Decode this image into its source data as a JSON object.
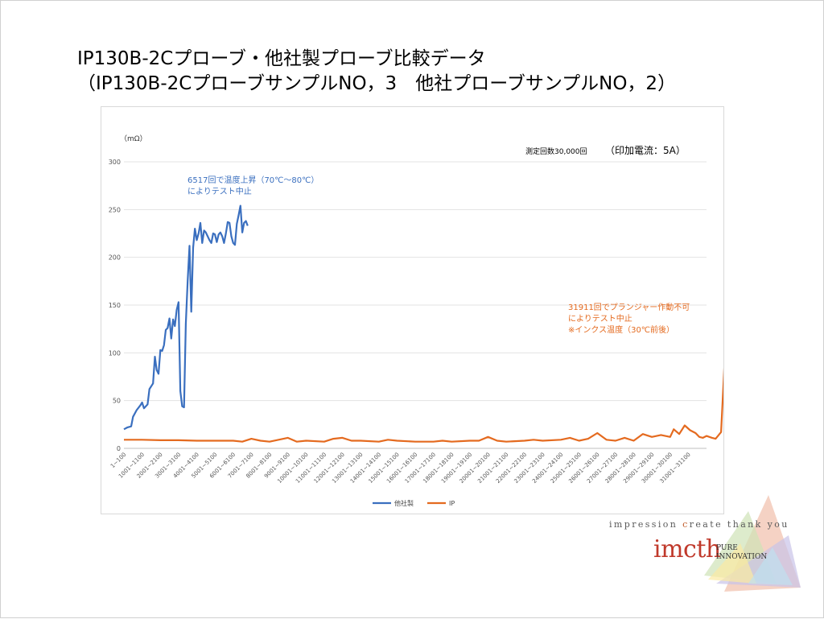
{
  "slide": {
    "title_line1": "IP130B-2Cプローブ・他社製プローブ比較データ",
    "title_line2": "（IP130B-2CプローブサンプルNO，3　他社プローブサンプルNO，2）"
  },
  "chart_data": {
    "type": "line",
    "ylabel": "（mΩ）",
    "ylim": [
      0,
      300
    ],
    "yticks": [
      0,
      50,
      100,
      150,
      200,
      250,
      300
    ],
    "grid": "horizontal",
    "legend_position": "bottom",
    "header_note_count": "測定回数30,000回",
    "header_note_current": "（印加電流：5A）",
    "annotations": [
      {
        "id": "competitor-stop",
        "color": "#3a6fbf",
        "lines": [
          "6517回で温度上昇（70℃〜80℃）",
          "によりテスト中止"
        ]
      },
      {
        "id": "ip-stop",
        "color": "#e46a1f",
        "lines": [
          "31911回でプランジャー作動不可",
          "によりテスト中止",
          "※インクス温度（30℃前後）"
        ]
      }
    ],
    "categories": [
      "1~100",
      "1001~1100",
      "2001~2100",
      "3001~3100",
      "4001~4100",
      "5001~5100",
      "6001~6100",
      "7001~7100",
      "8001~8100",
      "9001~9100",
      "10001~10100",
      "11001~11100",
      "12001~12100",
      "13001~13100",
      "14001~14100",
      "15001~15100",
      "16001~16100",
      "17001~17100",
      "18001~18100",
      "19001~19100",
      "20001~20100",
      "21001~21100",
      "22001~22100",
      "23001~23100",
      "24001~24100",
      "25001~25100",
      "26001~26100",
      "27001~27100",
      "28001~28100",
      "29001~29100",
      "30001~30100",
      "31001~31100"
    ],
    "x_max": 320,
    "series": [
      {
        "name": "他社製",
        "color": "#3a6fbf",
        "points": [
          [
            0,
            20
          ],
          [
            2,
            22
          ],
          [
            4,
            23
          ],
          [
            5,
            33
          ],
          [
            7,
            40
          ],
          [
            9,
            45
          ],
          [
            10,
            48
          ],
          [
            11,
            42
          ],
          [
            13,
            46
          ],
          [
            14,
            62
          ],
          [
            16,
            68
          ],
          [
            17,
            96
          ],
          [
            18,
            82
          ],
          [
            19,
            78
          ],
          [
            20,
            103
          ],
          [
            21,
            102
          ],
          [
            22,
            108
          ],
          [
            23,
            124
          ],
          [
            24,
            126
          ],
          [
            25,
            136
          ],
          [
            26,
            115
          ],
          [
            27,
            135
          ],
          [
            28,
            128
          ],
          [
            29,
            145
          ],
          [
            30,
            153
          ],
          [
            31,
            60
          ],
          [
            32,
            44
          ],
          [
            33,
            43
          ],
          [
            34,
            130
          ],
          [
            35,
            175
          ],
          [
            36,
            212
          ],
          [
            37,
            143
          ],
          [
            38,
            210
          ],
          [
            39,
            230
          ],
          [
            40,
            218
          ],
          [
            41,
            225
          ],
          [
            42,
            236
          ],
          [
            43,
            215
          ],
          [
            44,
            228
          ],
          [
            45,
            226
          ],
          [
            46,
            222
          ],
          [
            47,
            218
          ],
          [
            48,
            215
          ],
          [
            49,
            225
          ],
          [
            50,
            224
          ],
          [
            51,
            216
          ],
          [
            52,
            224
          ],
          [
            53,
            226
          ],
          [
            54,
            222
          ],
          [
            55,
            215
          ],
          [
            56,
            225
          ],
          [
            57,
            237
          ],
          [
            58,
            236
          ],
          [
            59,
            222
          ],
          [
            60,
            215
          ],
          [
            61,
            213
          ],
          [
            62,
            235
          ],
          [
            63,
            244
          ],
          [
            64,
            254
          ],
          [
            65,
            226
          ],
          [
            66,
            236
          ],
          [
            67,
            238
          ],
          [
            68,
            233
          ]
        ]
      },
      {
        "name": "IP",
        "color": "#e46a1f",
        "points": [
          [
            0,
            9
          ],
          [
            10,
            9
          ],
          [
            20,
            8.5
          ],
          [
            30,
            8.5
          ],
          [
            40,
            8
          ],
          [
            50,
            8
          ],
          [
            60,
            8
          ],
          [
            65,
            7
          ],
          [
            70,
            10
          ],
          [
            75,
            8
          ],
          [
            80,
            7
          ],
          [
            85,
            9
          ],
          [
            90,
            11
          ],
          [
            95,
            7
          ],
          [
            100,
            8
          ],
          [
            110,
            7
          ],
          [
            115,
            10
          ],
          [
            120,
            11
          ],
          [
            125,
            8
          ],
          [
            130,
            8
          ],
          [
            140,
            7
          ],
          [
            145,
            9
          ],
          [
            150,
            8
          ],
          [
            160,
            7
          ],
          [
            170,
            7
          ],
          [
            175,
            8
          ],
          [
            180,
            7
          ],
          [
            190,
            8
          ],
          [
            195,
            8
          ],
          [
            200,
            12
          ],
          [
            205,
            8
          ],
          [
            210,
            7
          ],
          [
            220,
            8
          ],
          [
            225,
            9
          ],
          [
            230,
            8
          ],
          [
            240,
            9
          ],
          [
            245,
            11
          ],
          [
            250,
            8
          ],
          [
            255,
            10
          ],
          [
            260,
            16
          ],
          [
            265,
            9
          ],
          [
            270,
            8
          ],
          [
            275,
            11
          ],
          [
            280,
            8
          ],
          [
            285,
            15
          ],
          [
            290,
            12
          ],
          [
            295,
            14
          ],
          [
            300,
            12
          ],
          [
            302,
            20
          ],
          [
            305,
            15
          ],
          [
            308,
            24
          ],
          [
            311,
            19
          ],
          [
            314,
            16
          ],
          [
            316,
            12
          ],
          [
            318,
            11
          ],
          [
            320,
            13
          ],
          [
            323,
            11
          ],
          [
            325,
            10
          ],
          [
            328,
            17
          ],
          [
            330,
            93
          ],
          [
            331,
            80
          ],
          [
            332,
            15
          ],
          [
            334,
            14
          ]
        ]
      }
    ]
  },
  "branding": {
    "tagline_a": "impression ",
    "tagline_c": "c",
    "tagline_b": "reate  thank you",
    "logo_text": "imcth",
    "logo_pure": "PURE",
    "logo_innovation": "INNOVATION"
  }
}
